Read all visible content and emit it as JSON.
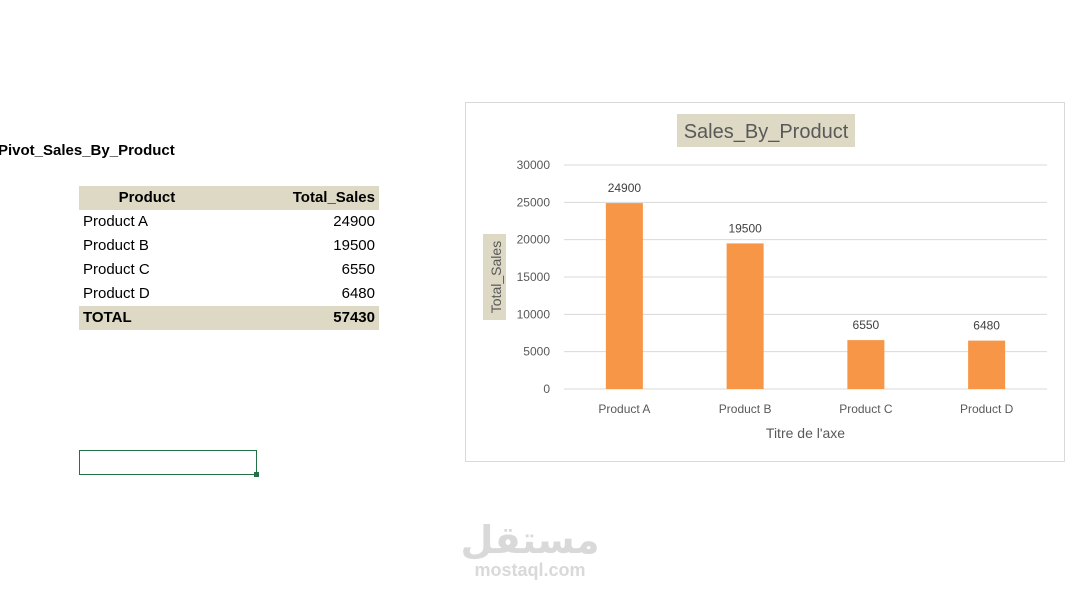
{
  "sheet": {
    "pivot_title": "Pivot_Sales_By_Product",
    "table": {
      "headers": [
        "Product",
        "Total_Sales"
      ],
      "rows": [
        {
          "product": "Product A",
          "sales": "24900"
        },
        {
          "product": "Product B",
          "sales": "19500"
        },
        {
          "product": "Product C",
          "sales": "6550"
        },
        {
          "product": "Product D",
          "sales": "6480"
        }
      ],
      "total_label": "TOTAL",
      "total_value": "57430"
    }
  },
  "chart_data": {
    "type": "bar",
    "title": "Sales_By_Product",
    "xlabel": "Titre de l'axe",
    "ylabel": "Total_Sales",
    "categories": [
      "Product A",
      "Product B",
      "Product C",
      "Product D"
    ],
    "values": [
      24900,
      19500,
      6550,
      6480
    ],
    "ylim": [
      0,
      30000
    ],
    "yticks": [
      "0",
      "5000",
      "10000",
      "15000",
      "20000",
      "25000",
      "30000"
    ],
    "grid": true,
    "data_labels": true,
    "bar_color": "#f79646",
    "title_bg": "#ddd9c4"
  },
  "watermark": {
    "logo": "مستقل",
    "url": "mostaql.com"
  }
}
